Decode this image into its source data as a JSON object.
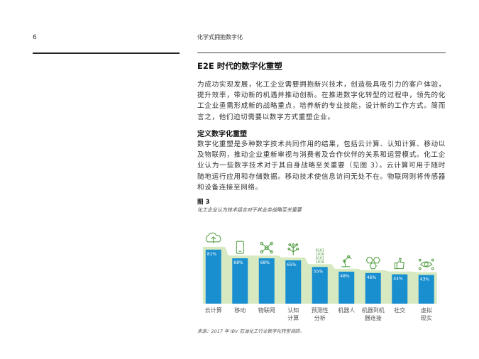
{
  "page": {
    "number": "6",
    "running_title": "化学式拥抱数字化"
  },
  "section": {
    "title": "E2E 时代的数字化重塑",
    "paragraph1": "为成功实现发展，化工企业需要拥抱新兴技术，创造极具吸引力的客户体验，提升效率，带动新的机遇并推动创新。在推进数字化转型的过程中，领先的化工企业亟需形成新的战略重点，培养新的专业技能，设计新的工作方式。简而言之，他们迫切需要以数字方式重塑企业。",
    "subtitle": "定义数字化重塑",
    "paragraph2": "数字化重塑是多种数字技术共同作用的结果，包括云计算、认知计算、移动以及物联网，推动企业重新审视与消费者及合作伙伴的关系和运营模式。化工企业认为一些数字技术对于其自身战略至关重要（见图 3）。云计算可用于随时随地运行应用和存储数据。移动技术使信息访问无处不在。物联网则将传感器和设备连接至网络。"
  },
  "figure": {
    "label": "图 3",
    "caption": "化工企业认为技术组合对于其业务战略至关重要",
    "source": "来源：2017 年 IBV 石油化工行业数字化转型调研。"
  },
  "colors": {
    "bar": "#1a8fcf",
    "area": "#d6e9c0",
    "icon": "#4a9a3a"
  },
  "chart_data": {
    "type": "bar",
    "categories": [
      [
        "云计算"
      ],
      [
        "移动"
      ],
      [
        "物联网"
      ],
      [
        "认知",
        "计算"
      ],
      [
        "预测性",
        "分析"
      ],
      [
        "机器人"
      ],
      [
        "机器到机",
        "器连接"
      ],
      [
        "社交"
      ],
      [
        "虚拟",
        "现实"
      ]
    ],
    "values": [
      81,
      68,
      68,
      65,
      55,
      48,
      46,
      44,
      43
    ],
    "value_labels": [
      "81%",
      "68%",
      "68%",
      "65%",
      "55%",
      "48%",
      "46%",
      "44%",
      "43%"
    ],
    "icons": [
      "cloud-upload-icon",
      "mobile-phone-icon",
      "network-nodes-icon",
      "brain-icon",
      "binary-data-icon",
      "robot-arm-icon",
      "hexagon-link-icon",
      "thumbs-up-icon",
      "eye-vr-icon"
    ],
    "ylim": [
      0,
      100
    ],
    "grid": false,
    "legend": "none"
  }
}
